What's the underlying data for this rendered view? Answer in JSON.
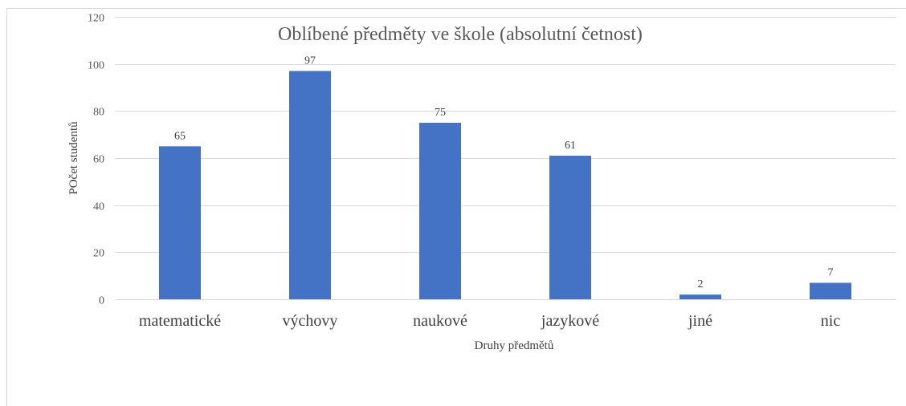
{
  "chart_data": {
    "type": "bar",
    "title": "Oblíbené předměty  ve škole (absolutní četnost)",
    "xlabel": "Druhy předmětů",
    "ylabel": "POčet studentů",
    "categories": [
      "matematické",
      "výchovy",
      "naukové",
      "jazykové",
      "jiné",
      "nic"
    ],
    "values": [
      65,
      97,
      75,
      61,
      2,
      7
    ],
    "ylim": [
      0,
      120
    ],
    "yticks": [
      0,
      20,
      40,
      60,
      80,
      100,
      120
    ],
    "grid": true,
    "legend": "none",
    "bar_color": "#4472c4"
  }
}
